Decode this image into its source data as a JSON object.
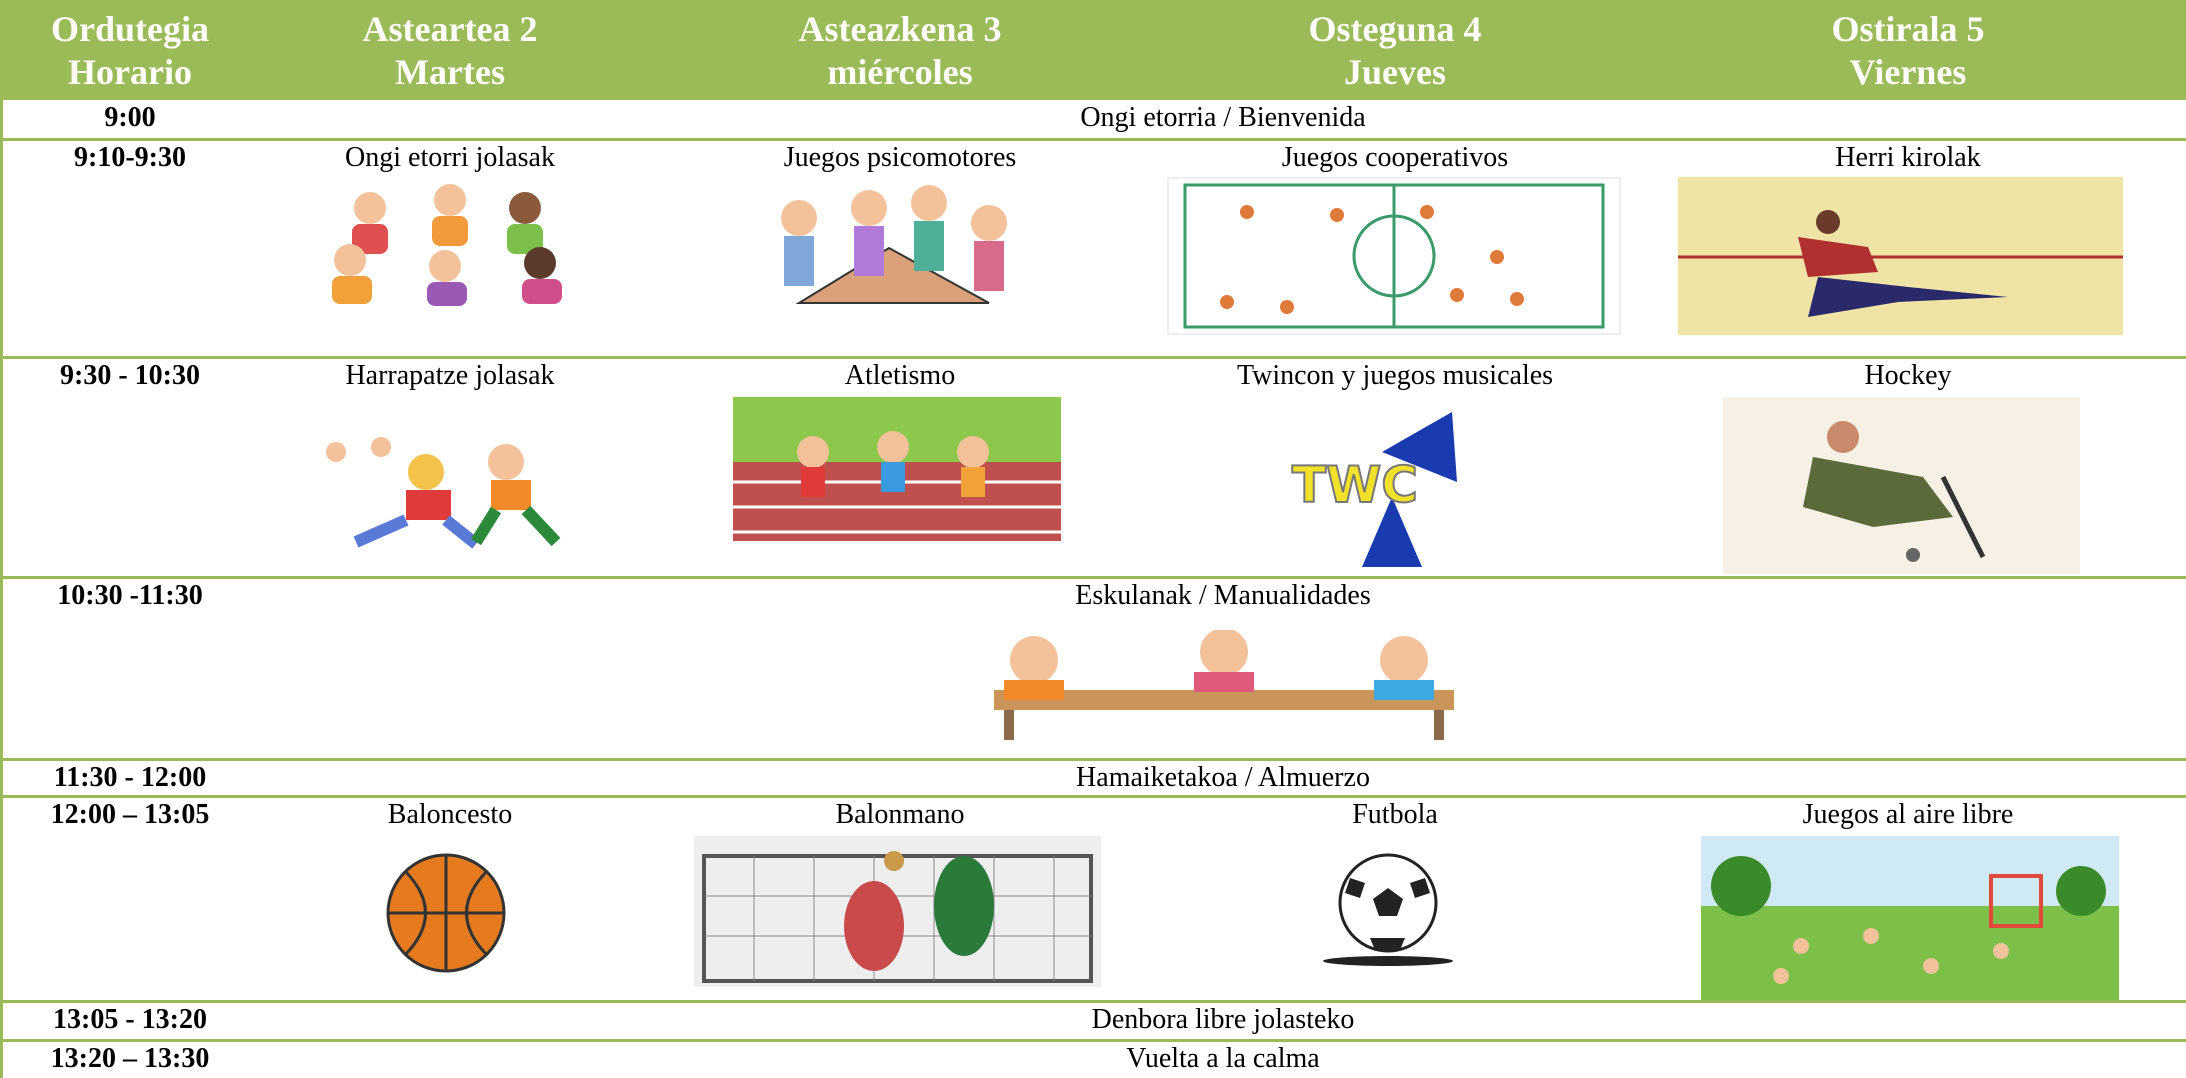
{
  "header": [
    {
      "line1": "Ordutegia",
      "line2": "Horario"
    },
    {
      "line1": "Asteartea 2",
      "line2": "Martes"
    },
    {
      "line1": "Asteazkena 3",
      "line2": "miércoles"
    },
    {
      "line1": "Osteguna 4",
      "line2": "Jueves"
    },
    {
      "line1": "Ostirala 5",
      "line2": "Viernes"
    }
  ],
  "rows": [
    {
      "time": "9:00",
      "text": "Ongi etorria / Bienvenida"
    },
    {
      "time": "9:10-9:30",
      "cells": [
        "Ongi etorri jolasak",
        "Juegos psicomotores",
        "Juegos cooperativos",
        "Herri kirolak"
      ]
    },
    {
      "time": "9:30 - 10:30",
      "cells": [
        "Harrapatze jolasak",
        "Atletismo",
        "Twincon y juegos musicales",
        "Hockey"
      ]
    },
    {
      "time": "10:30 -11:30",
      "text": "Eskulanak / Manualidades"
    },
    {
      "time": "11:30 - 12:00",
      "text": "Hamaiketakoa / Almuerzo"
    },
    {
      "time": "12:00 – 13:05",
      "cells": [
        "Baloncesto",
        "Balonmano",
        "Futbola",
        "Juegos al aire libre"
      ]
    },
    {
      "time": "13:05 - 13:20",
      "text": "Denbora libre jolasteko"
    },
    {
      "time": "13:20 – 13:30",
      "text": "Vuelta a la calma"
    }
  ]
}
